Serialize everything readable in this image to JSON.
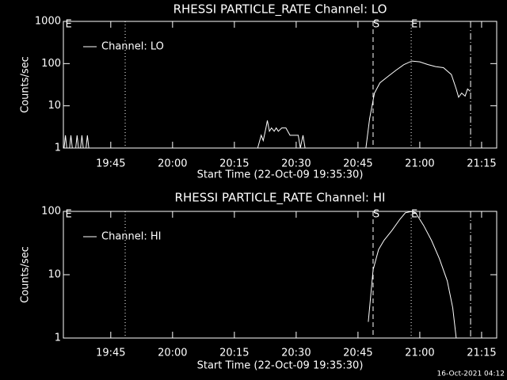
{
  "chart_data": [
    {
      "type": "line",
      "title": "RHESSI PARTICLE_RATE Channel: LO",
      "xlabel": "Start Time (22-Oct-09 19:35:30)",
      "ylabel": "Counts/sec",
      "log": true,
      "ylim": [
        1,
        1000
      ],
      "yticks": [
        1,
        10,
        100,
        1000
      ],
      "xlim": [
        "19:33:30",
        "21:18:40"
      ],
      "xticks": [
        "19:45",
        "20:00",
        "20:15",
        "20:30",
        "20:45",
        "21:00",
        "21:15"
      ],
      "legend": "upper left",
      "vlines": [
        {
          "x": "19:48:30",
          "style": "dotted"
        },
        {
          "x": "20:48:40",
          "style": "dashed"
        },
        {
          "x": "20:57:55",
          "style": "dotted"
        },
        {
          "x": "21:12:20",
          "style": "dashdot"
        }
      ],
      "annotations": [
        {
          "text": "E",
          "x": "19:34:00"
        },
        {
          "text": "S",
          "x": "20:48:40"
        },
        {
          "text": "E",
          "x": "20:57:55"
        }
      ],
      "x": [
        "19:33:40",
        "19:34:00",
        "19:34:20",
        "19:35:00",
        "19:35:20",
        "19:35:40",
        "19:36:30",
        "19:36:50",
        "19:37:10",
        "19:37:40",
        "19:38:00",
        "19:38:20",
        "19:39:00",
        "19:39:20",
        "19:39:40",
        "19:40:00",
        "20:20:40",
        "20:21:30",
        "20:22:00",
        "20:22:40",
        "20:23:00",
        "20:23:30",
        "20:24:00",
        "20:24:40",
        "20:25:10",
        "20:25:40",
        "20:26:30",
        "20:27:30",
        "20:28:30",
        "20:29:30",
        "20:30:30",
        "20:31:00",
        "20:31:40",
        "20:32:10",
        "20:33:00",
        "20:34:00",
        "20:46:55",
        "20:47:50",
        "20:49:00",
        "20:50:20",
        "20:52:20",
        "20:54:15",
        "20:56:10",
        "20:58:05",
        "21:00:00",
        "21:01:55",
        "21:03:50",
        "21:05:45",
        "21:07:40",
        "21:08:50",
        "21:09:25",
        "21:10:10",
        "21:11:00",
        "21:11:35",
        "21:12:15"
      ],
      "series": [
        {
          "name": "Channel: LO",
          "color": "#ffffff",
          "values": [
            1,
            2,
            1,
            1,
            2,
            1,
            1,
            2,
            1,
            1,
            2,
            1,
            1,
            2,
            1,
            null,
            1,
            2,
            1.5,
            3,
            4.5,
            2.5,
            3,
            2.5,
            3,
            2.5,
            3,
            3,
            2,
            2,
            2,
            1,
            2,
            1,
            1,
            null,
            1,
            5,
            20,
            35,
            50,
            70,
            95,
            115,
            110,
            95,
            85,
            80,
            55,
            25,
            16,
            20,
            17,
            25,
            22
          ]
        }
      ]
    },
    {
      "type": "line",
      "title": "RHESSI PARTICLE_RATE Channel: HI",
      "xlabel": "Start Time (22-Oct-09 19:35:30)",
      "ylabel": "Counts/sec",
      "log": true,
      "ylim": [
        1,
        100
      ],
      "yticks": [
        1,
        10,
        100
      ],
      "xlim": [
        "19:33:30",
        "21:18:40"
      ],
      "xticks": [
        "19:45",
        "20:00",
        "20:15",
        "20:30",
        "20:45",
        "21:00",
        "21:15"
      ],
      "legend": "upper left",
      "vlines": [
        {
          "x": "19:48:30",
          "style": "dotted"
        },
        {
          "x": "20:48:40",
          "style": "dashed"
        },
        {
          "x": "20:57:55",
          "style": "dotted"
        },
        {
          "x": "21:12:20",
          "style": "dashdot"
        }
      ],
      "annotations": [
        {
          "text": "E",
          "x": "19:34:00"
        },
        {
          "text": "S",
          "x": "20:48:40"
        },
        {
          "text": "E",
          "x": "20:57:55"
        }
      ],
      "x": [
        "20:47:30",
        "20:48:40",
        "20:50:00",
        "20:51:20",
        "20:53:15",
        "20:55:10",
        "20:56:30",
        "20:58:05",
        "20:59:00",
        "21:00:55",
        "21:02:50",
        "21:04:45",
        "21:06:40",
        "21:08:00",
        "21:08:50"
      ],
      "series": [
        {
          "name": "Channel: HI",
          "color": "#ffffff",
          "values": [
            1.8,
            12,
            25,
            35,
            50,
            75,
            95,
            100,
            95,
            60,
            35,
            18,
            8,
            3,
            1
          ]
        }
      ]
    }
  ],
  "footer": "16-Oct-2021 04:12"
}
